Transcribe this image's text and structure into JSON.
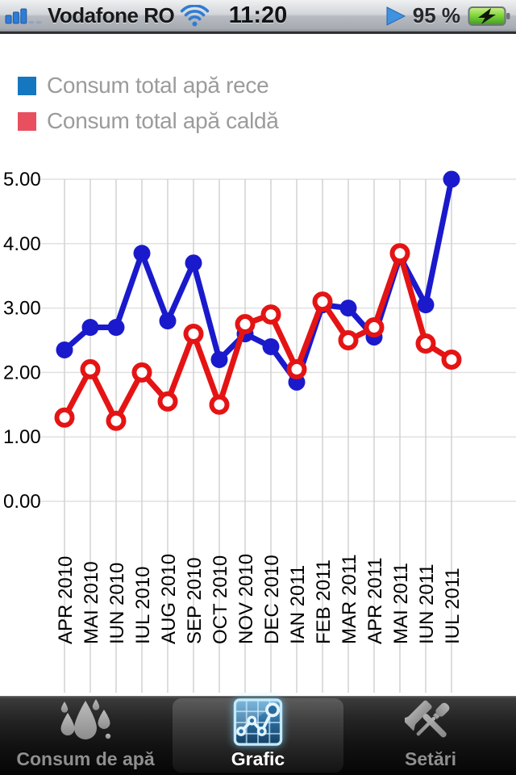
{
  "status_bar": {
    "carrier": "Vodafone RO",
    "time": "11:20",
    "battery_level": "95 %",
    "signal_icon": "signal-bars-3-of-5",
    "wifi_icon": "wifi",
    "play_icon": "play",
    "battery_icon": "battery-charging-green",
    "icon_blue": "#2e7cd5"
  },
  "legend": {
    "items": [
      {
        "label": "Consum total apă rece",
        "color": "#1577c0"
      },
      {
        "label": "Consum total apă caldă",
        "color": "#e85060"
      }
    ]
  },
  "chart_data": {
    "type": "line",
    "title": "",
    "categories": [
      "APR 2010",
      "MAI 2010",
      "IUN 2010",
      "IUL 2010",
      "AUG 2010",
      "SEP 2010",
      "OCT 2010",
      "NOV 2010",
      "DEC 2010",
      "IAN 2011",
      "FEB 2011",
      "MAR 2011",
      "APR 2011",
      "MAI 2011",
      "IUN 2011",
      "IUL 2011"
    ],
    "series": [
      {
        "name": "Consum total apă rece",
        "color": "#1a1acc",
        "marker": "filled-circle",
        "values": [
          2.35,
          2.7,
          2.7,
          3.85,
          2.8,
          3.7,
          2.2,
          2.6,
          2.4,
          1.85,
          3.05,
          3.0,
          2.55,
          3.8,
          3.05,
          5.0
        ]
      },
      {
        "name": "Consum total apă caldă",
        "color": "#e51414",
        "marker": "open-circle",
        "values": [
          1.3,
          2.05,
          1.25,
          2.0,
          1.55,
          2.6,
          1.5,
          2.75,
          2.9,
          2.05,
          3.1,
          2.5,
          2.7,
          3.85,
          2.45,
          2.2
        ]
      }
    ],
    "ylim": [
      0,
      5
    ],
    "yticks": [
      "5.00",
      "4.00",
      "3.00",
      "2.00",
      "1.00",
      "0.00"
    ],
    "grid": true,
    "grid_color_vertical": "#d2d2d2",
    "grid_color_horizontal": "#e0e0e0",
    "tick_color": "#000000",
    "x_label_rotation": -90,
    "legend_position": "top-left"
  },
  "tab_bar": {
    "tabs": [
      {
        "label": "Consum de apă",
        "icon": "water-drops-icon",
        "selected": false
      },
      {
        "label": "Grafic",
        "icon": "line-chart-icon",
        "selected": true
      },
      {
        "label": "Setări",
        "icon": "tools-icon",
        "selected": false
      }
    ]
  }
}
